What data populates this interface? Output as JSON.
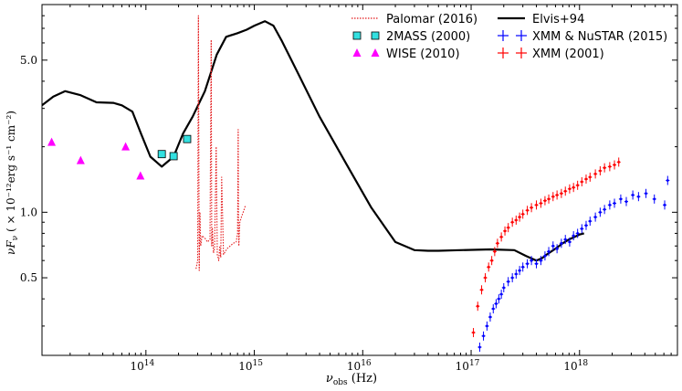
{
  "chart_data": {
    "type": "scatter",
    "title": "",
    "xlabel_main": "ν",
    "xlabel_sub": "obs",
    "xlabel_unit": " (Hz)",
    "ylabel_main": "νF",
    "ylabel_sub": "ν",
    "ylabel_unit": " ( × 10⁻¹²erg s⁻¹ cm⁻²)",
    "xscale": "log",
    "yscale": "log",
    "xlim": [
      11000000000000,
      8000000000000000000
    ],
    "ylim": [
      0.22,
      9.0
    ],
    "x_ticks": [
      {
        "value": 100000000000000.0,
        "base": "10",
        "exp": "14"
      },
      {
        "value": 1000000000000000.0,
        "base": "10",
        "exp": "15"
      },
      {
        "value": 1e+16,
        "base": "10",
        "exp": "16"
      },
      {
        "value": 1e+17,
        "base": "10",
        "exp": "17"
      },
      {
        "value": 1e+18,
        "base": "10",
        "exp": "18"
      }
    ],
    "y_ticks": [
      {
        "value": 0.5,
        "label": "0.5"
      },
      {
        "value": 1.0,
        "label": "1.0"
      },
      {
        "value": 5.0,
        "label": "5.0"
      }
    ],
    "legend_position": "top",
    "legend": [
      {
        "label": "Palomar (2016)",
        "style": "dotted-line",
        "color": "#e41a1c"
      },
      {
        "label": "2MASS (2000)",
        "style": "square",
        "color": "#33e0e0"
      },
      {
        "label": "WISE (2010)",
        "style": "triangle",
        "color": "#ff00ff"
      },
      {
        "label": "Elvis+94",
        "style": "solid-line",
        "color": "#000000"
      },
      {
        "label": "XMM & NuSTAR (2015)",
        "style": "cross",
        "color": "#0000ff"
      },
      {
        "label": "XMM (2001)",
        "style": "cross",
        "color": "#ff0000"
      }
    ],
    "series": [
      {
        "name": "Elvis+94",
        "kind": "line",
        "color": "#000000",
        "x": [
          11000000000000,
          14000000000000,
          18000000000000,
          25000000000000,
          35000000000000,
          50000000000000,
          60000000000000,
          75000000000000,
          90000000000000,
          110000000000000,
          140000000000000,
          180000000000000,
          220000000000000,
          270000000000000,
          350000000000000,
          450000000000000,
          550000000000000,
          700000000000000,
          850000000000000,
          1000000000000000,
          1250000000000000,
          1500000000000000,
          1800000000000000,
          2500000000000000,
          4000000000000000,
          7000000000000000,
          12000000000000000,
          20000000000000000,
          30000000000000000,
          40000000000000000,
          50000000000000000,
          80000000000000000,
          150000000000000000,
          250000000000000000,
          320000000000000000,
          400000000000000000,
          450000000000000000,
          500000000000000000,
          600000000000000000,
          700000000000000000,
          800000000000000000,
          1000000000000000000,
          1100000000000000000
        ],
        "y": [
          3.1,
          3.4,
          3.6,
          3.45,
          3.2,
          3.18,
          3.1,
          2.9,
          2.3,
          1.8,
          1.62,
          1.8,
          2.3,
          2.75,
          3.6,
          5.3,
          6.4,
          6.65,
          6.9,
          7.2,
          7.55,
          7.2,
          6.1,
          4.4,
          2.75,
          1.68,
          1.05,
          0.73,
          0.67,
          0.665,
          0.665,
          0.67,
          0.675,
          0.67,
          0.63,
          0.6,
          0.615,
          0.64,
          0.68,
          0.72,
          0.75,
          0.79,
          0.8
        ]
      },
      {
        "name": "2MASS (2000)",
        "kind": "square",
        "color": "#33e0e0",
        "x": [
          140000000000000,
          180000000000000,
          240000000000000
        ],
        "y": [
          1.85,
          1.81,
          2.17
        ]
      },
      {
        "name": "WISE (2010)",
        "kind": "triangle",
        "color": "#ff00ff",
        "x": [
          13500000000000,
          25000000000000,
          65000000000000,
          89000000000000
        ],
        "y": [
          2.1,
          1.73,
          2.0,
          1.47
        ]
      },
      {
        "name": "Palomar (2016)",
        "kind": "dotted",
        "color": "#e41a1c",
        "x": [
          290000000000000,
          300000000000000,
          305000000000000,
          310000000000000,
          315000000000000,
          320000000000000,
          330000000000000,
          350000000000000,
          370000000000000,
          390000000000000,
          400000000000000,
          405000000000000,
          410000000000000,
          420000000000000,
          430000000000000,
          445000000000000,
          455000000000000,
          470000000000000,
          480000000000000,
          490000000000000,
          500000000000000,
          520000000000000,
          540000000000000,
          560000000000000,
          600000000000000,
          640000000000000,
          680000000000000,
          700000000000000,
          710000000000000,
          715000000000000,
          720000000000000,
          735000000000000,
          760000000000000,
          800000000000000,
          830000000000000
        ],
        "y": [
          0.55,
          0.6,
          8.0,
          0.54,
          1.0,
          0.7,
          0.78,
          0.76,
          0.73,
          0.75,
          6.2,
          0.7,
          0.85,
          0.65,
          0.68,
          2.0,
          0.64,
          0.6,
          0.7,
          0.62,
          1.45,
          0.64,
          0.66,
          0.68,
          0.7,
          0.72,
          0.73,
          0.8,
          2.4,
          0.85,
          0.7,
          0.9,
          0.95,
          1.02,
          1.08
        ]
      },
      {
        "name": "XMM & NuSTAR (2015)",
        "kind": "cross",
        "color": "#0000ff",
        "x": [
          120000000000000000,
          130000000000000000,
          140000000000000000,
          150000000000000000,
          160000000000000000,
          170000000000000000,
          180000000000000000,
          190000000000000000,
          200000000000000000,
          220000000000000000,
          240000000000000000,
          260000000000000000,
          280000000000000000,
          300000000000000000,
          330000000000000000,
          360000000000000000,
          400000000000000000,
          440000000000000000,
          480000000000000000,
          520000000000000000,
          570000000000000000,
          620000000000000000,
          680000000000000000,
          740000000000000000,
          810000000000000000,
          880000000000000000,
          960000000000000000,
          1050000000000000000,
          1150000000000000000,
          1250000000000000000,
          1400000000000000000,
          1550000000000000000,
          1700000000000000000,
          1900000000000000000,
          2100000000000000000,
          2400000000000000000,
          2700000000000000000,
          3100000000000000000,
          3500000000000000000,
          4100000000000000000,
          4900000000000000000,
          6100000000000000000,
          6500000000000000000
        ],
        "y": [
          0.24,
          0.27,
          0.3,
          0.33,
          0.36,
          0.38,
          0.4,
          0.42,
          0.45,
          0.48,
          0.5,
          0.52,
          0.54,
          0.56,
          0.58,
          0.6,
          0.58,
          0.6,
          0.63,
          0.66,
          0.7,
          0.68,
          0.72,
          0.75,
          0.73,
          0.78,
          0.8,
          0.84,
          0.87,
          0.91,
          0.95,
          1.0,
          1.03,
          1.08,
          1.1,
          1.15,
          1.12,
          1.2,
          1.18,
          1.22,
          1.15,
          1.08,
          1.4
        ]
      },
      {
        "name": "XMM (2001)",
        "kind": "cross",
        "color": "#ff0000",
        "x": [
          105000000000000000,
          115000000000000000,
          125000000000000000,
          135000000000000000,
          145000000000000000,
          155000000000000000,
          165000000000000000,
          175000000000000000,
          190000000000000000,
          205000000000000000,
          220000000000000000,
          240000000000000000,
          260000000000000000,
          280000000000000000,
          300000000000000000,
          330000000000000000,
          360000000000000000,
          400000000000000000,
          440000000000000000,
          480000000000000000,
          520000000000000000,
          570000000000000000,
          620000000000000000,
          680000000000000000,
          740000000000000000,
          810000000000000000,
          880000000000000000,
          960000000000000000,
          1050000000000000000,
          1150000000000000000,
          1250000000000000000,
          1400000000000000000,
          1550000000000000000,
          1700000000000000000,
          1900000000000000000,
          2100000000000000000,
          2300000000000000000
        ],
        "y": [
          0.28,
          0.37,
          0.44,
          0.5,
          0.56,
          0.6,
          0.66,
          0.72,
          0.77,
          0.82,
          0.85,
          0.9,
          0.92,
          0.95,
          0.98,
          1.02,
          1.05,
          1.08,
          1.1,
          1.13,
          1.15,
          1.18,
          1.2,
          1.22,
          1.25,
          1.28,
          1.3,
          1.33,
          1.38,
          1.42,
          1.45,
          1.5,
          1.55,
          1.6,
          1.62,
          1.65,
          1.7
        ]
      }
    ]
  }
}
